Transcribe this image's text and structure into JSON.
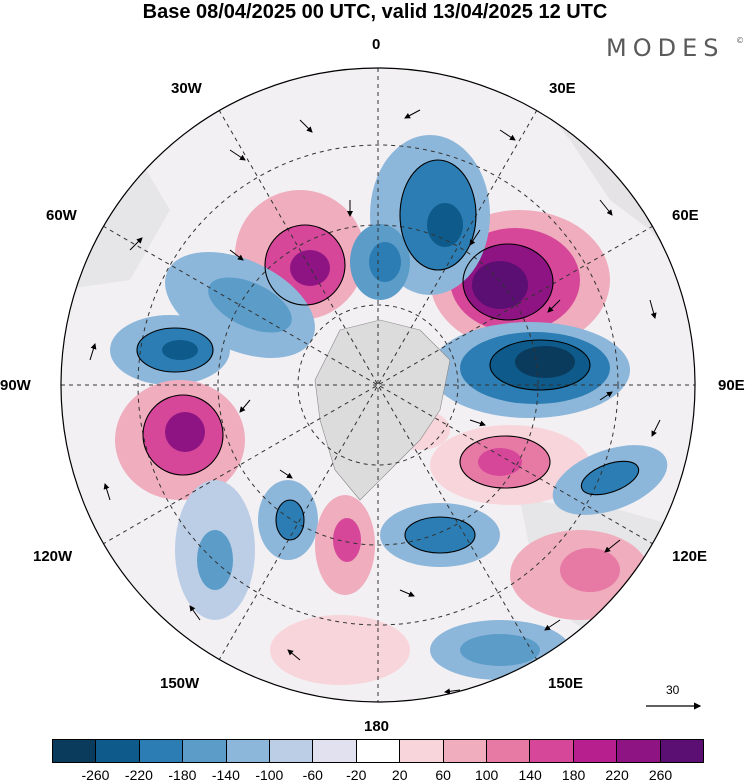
{
  "title": "Base 08/04/2025 00 UTC, valid 13/04/2025 12 UTC",
  "logo": "MODES",
  "logo_mark": "©",
  "longitude_labels": {
    "top": "0",
    "top_left": "30W",
    "top_right": "30E",
    "upper_left": "60W",
    "upper_right": "60E",
    "left": "90W",
    "right": "90E",
    "lower_left": "120W",
    "lower_right": "120E",
    "bottom_left": "150W",
    "bottom_right": "150E",
    "bottom": "180"
  },
  "reference_vector": "30",
  "colorbar": {
    "colors": [
      "#0b3b5c",
      "#0e5a8a",
      "#2b7db3",
      "#5b9cc9",
      "#8db7da",
      "#bccde6",
      "#e1e1f0",
      "#ffffff",
      "#f8d5da",
      "#f0adbd",
      "#e77aa5",
      "#d6479a",
      "#b71f8e",
      "#8e1483",
      "#5b0f73"
    ],
    "labels": [
      "-260",
      "-220",
      "-180",
      "-140",
      "-100",
      "-60",
      "-20",
      "20",
      "60",
      "100",
      "140",
      "180",
      "220",
      "260"
    ]
  },
  "anomaly_cells": [
    {
      "label": "low",
      "color": "#2b7db3"
    },
    {
      "label": "high",
      "color": "#8e1483"
    }
  ]
}
